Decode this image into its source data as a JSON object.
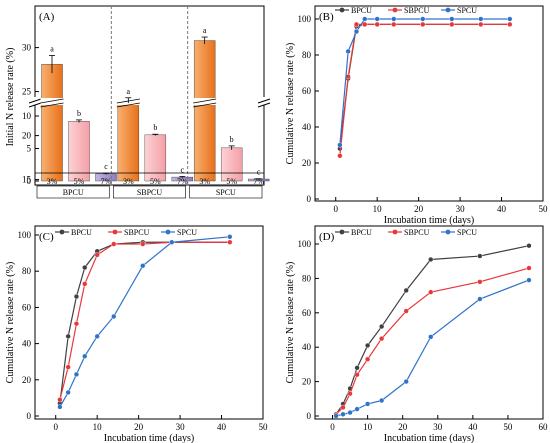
{
  "chart_data": [
    {
      "panel": "(A)",
      "type": "bar",
      "ylabel": "Initial N release rate (%)",
      "y_ticks": [
        "0",
        "5",
        "10",
        "15",
        "20",
        "25",
        "30"
      ],
      "groups": [
        {
          "name": "BPCU",
          "bars": [
            {
              "label": "3%",
              "value": 28.1,
              "err": 1.0,
              "letter": "a"
            },
            {
              "label": "5%",
              "value": 9.2,
              "err": 0.2,
              "letter": "b"
            },
            {
              "label": "7%",
              "value": 1.1,
              "err": 0.1,
              "letter": "c"
            }
          ]
        },
        {
          "name": "SBPCU",
          "bars": [
            {
              "label": "3%",
              "value": 24.0,
              "err": 0.3,
              "letter": "a"
            },
            {
              "label": "5%",
              "value": 7.1,
              "err": 0.1,
              "letter": "b"
            },
            {
              "label": "7%",
              "value": 0.6,
              "err": 0.1,
              "letter": "c"
            }
          ]
        },
        {
          "name": "SPCU",
          "bars": [
            {
              "label": "3%",
              "value": 30.8,
              "err": 0.4,
              "letter": "a"
            },
            {
              "label": "5%",
              "value": 5.1,
              "err": 0.3,
              "letter": "b"
            },
            {
              "label": "7%",
              "value": 0.3,
              "err": 0.05,
              "letter": "c"
            }
          ]
        }
      ],
      "axis_break": [
        10,
        22
      ],
      "colors": {
        "3%": "#f07d22",
        "5%": "#f7a9ad",
        "7%": "#9a86c8"
      }
    },
    {
      "panel": "(B)",
      "type": "line",
      "xlabel": "Incubation time (days)",
      "ylabel": "Cumulative N release rate (%)",
      "xlim": [
        -5,
        50
      ],
      "ylim": [
        0,
        100
      ],
      "x_ticks": [
        0,
        10,
        20,
        30,
        40,
        50
      ],
      "y_ticks": [
        0,
        20,
        40,
        60,
        80,
        100
      ],
      "series": [
        {
          "name": "BPCU",
          "color": "#404040",
          "x": [
            1,
            3,
            5,
            7,
            10,
            14,
            21,
            28,
            35,
            42
          ],
          "y": [
            28,
            67,
            96,
            97,
            97,
            97,
            97,
            97,
            97,
            97
          ]
        },
        {
          "name": "SBPCU",
          "color": "#e8373a",
          "x": [
            1,
            3,
            5,
            7,
            10,
            14,
            21,
            28,
            35,
            42
          ],
          "y": [
            24,
            68,
            97,
            97,
            97,
            97,
            97,
            97,
            97,
            97
          ]
        },
        {
          "name": "SPCU",
          "color": "#2f73c9",
          "x": [
            1,
            3,
            5,
            7,
            10,
            14,
            21,
            28,
            35,
            42
          ],
          "y": [
            30,
            82,
            93,
            100,
            100,
            100,
            100,
            100,
            100,
            100
          ]
        }
      ]
    },
    {
      "panel": "(C)",
      "type": "line",
      "xlabel": "Incubation time (days)",
      "ylabel": "Cumulative N release rate (%)",
      "xlim": [
        -5,
        50
      ],
      "ylim": [
        0,
        100
      ],
      "x_ticks": [
        0,
        10,
        20,
        30,
        40,
        50
      ],
      "y_ticks": [
        0,
        20,
        40,
        60,
        80,
        100
      ],
      "series": [
        {
          "name": "BPCU",
          "color": "#404040",
          "x": [
            1,
            3,
            5,
            7,
            10,
            14,
            21,
            28,
            42
          ],
          "y": [
            7,
            44,
            66,
            82,
            91,
            95,
            96,
            96,
            96
          ]
        },
        {
          "name": "SBPCU",
          "color": "#e8373a",
          "x": [
            1,
            3,
            5,
            7,
            10,
            14,
            21,
            28,
            42
          ],
          "y": [
            9,
            27,
            51,
            73,
            89,
            95,
            95,
            96,
            96
          ]
        },
        {
          "name": "SPCU",
          "color": "#2f73c9",
          "x": [
            1,
            3,
            5,
            7,
            10,
            14,
            21,
            28,
            42
          ],
          "y": [
            5,
            13,
            23,
            33,
            44,
            55,
            83,
            96,
            99
          ]
        }
      ]
    },
    {
      "panel": "(D)",
      "type": "line",
      "xlabel": "Incubation time (days)",
      "ylabel": "Cumulative N release rate (%)",
      "xlim": [
        -5,
        60
      ],
      "ylim": [
        0,
        100
      ],
      "x_ticks": [
        0,
        10,
        20,
        30,
        40,
        50,
        60
      ],
      "y_ticks": [
        0,
        20,
        40,
        60,
        80,
        100
      ],
      "series": [
        {
          "name": "BPCU",
          "color": "#404040",
          "x": [
            1,
            3,
            5,
            7,
            10,
            14,
            21,
            28,
            42,
            56
          ],
          "y": [
            1,
            7,
            16,
            28,
            41,
            52,
            73,
            91,
            93,
            99
          ]
        },
        {
          "name": "SBPCU",
          "color": "#e8373a",
          "x": [
            1,
            3,
            5,
            7,
            10,
            14,
            21,
            28,
            42,
            56
          ],
          "y": [
            1,
            5,
            13,
            24,
            33,
            45,
            61,
            72,
            78,
            86
          ]
        },
        {
          "name": "SPCU",
          "color": "#2f73c9",
          "x": [
            1,
            3,
            5,
            7,
            10,
            14,
            21,
            28,
            42,
            56
          ],
          "y": [
            0,
            1,
            2,
            4,
            7,
            9,
            20,
            46,
            68,
            79
          ]
        }
      ]
    }
  ]
}
